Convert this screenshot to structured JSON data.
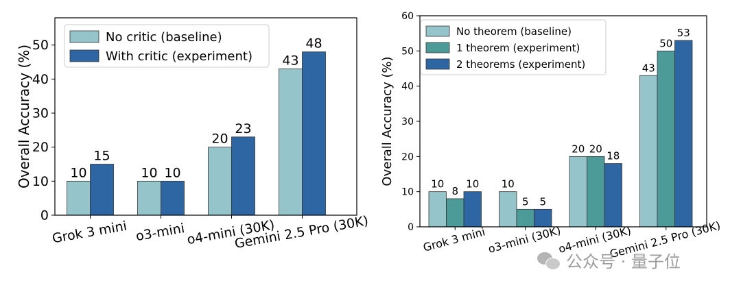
{
  "chart_data": [
    {
      "type": "bar",
      "ylabel": "Overall Accuracy (%)",
      "ylim": [
        0,
        58
      ],
      "yticks": [
        0,
        10,
        20,
        30,
        40,
        50
      ],
      "categories": [
        "Grok 3 mini",
        "o3-mini",
        "o4-mini (30K)",
        "Gemini 2.5 Pro (30K)"
      ],
      "series": [
        {
          "name": "No critic (baseline)",
          "color": "#96c4cb",
          "values": [
            10,
            10,
            20,
            43
          ]
        },
        {
          "name": "With critic (experiment)",
          "color": "#2e66a3",
          "values": [
            15,
            10,
            23,
            48
          ]
        }
      ],
      "legend_position": "top-left",
      "grid": false
    },
    {
      "type": "bar",
      "ylabel": "Overall Accuracy (%)",
      "ylim": [
        0,
        60
      ],
      "yticks": [
        0,
        10,
        20,
        30,
        40,
        50,
        60
      ],
      "categories": [
        "Grok 3 mini",
        "o3-mini (30K)",
        "o4-mini (30K)",
        "Gemini 2.5 Pro (30K)"
      ],
      "series": [
        {
          "name": "No theorem (baseline)",
          "color": "#96c4cb",
          "values": [
            10,
            10,
            20,
            43
          ]
        },
        {
          "name": "1 theorem (experiment)",
          "color": "#4c9b99",
          "values": [
            8,
            5,
            20,
            50
          ]
        },
        {
          "name": "2 theorems (experiment)",
          "color": "#2e66a3",
          "values": [
            10,
            5,
            18,
            53
          ]
        }
      ],
      "legend_position": "top-left",
      "grid": false
    }
  ],
  "watermark": {
    "text": "公众号 · 量子位",
    "icon": "wechat-icon"
  }
}
